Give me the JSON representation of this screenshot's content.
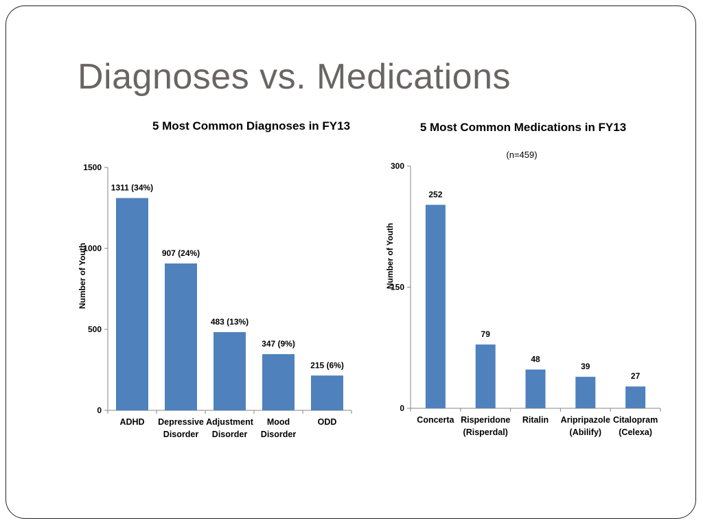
{
  "slide": {
    "title": "Diagnoses vs. Medications"
  },
  "chart_data": [
    {
      "type": "bar",
      "title": "5 Most Common Diagnoses in FY13",
      "subtitle": "",
      "ylabel": "Number of Youth",
      "xlabel": "",
      "ylim": [
        0,
        1500
      ],
      "yticks": [
        "0",
        "500",
        "1000",
        "1500"
      ],
      "categories": [
        [
          "ADHD"
        ],
        [
          "Depressive",
          "Disorder"
        ],
        [
          "Adjustment",
          "Disorder"
        ],
        [
          "Mood",
          "Disorder"
        ],
        [
          "ODD"
        ]
      ],
      "values": [
        1311,
        907,
        483,
        347,
        215
      ],
      "data_labels": [
        "1311 (34%)",
        "907 (24%)",
        "483 (13%)",
        "347 (9%)",
        "215 (6%)"
      ],
      "bar_color": "#4f81bd",
      "grid": false,
      "legend": "none"
    },
    {
      "type": "bar",
      "title": "5 Most Common Medications in FY13",
      "subtitle": "(n=459)",
      "ylabel": "Number of Youth",
      "xlabel": "",
      "ylim": [
        0,
        300
      ],
      "yticks": [
        "0",
        "150",
        "300"
      ],
      "categories": [
        [
          "Concerta"
        ],
        [
          "Risperidone",
          "(Risperdal)"
        ],
        [
          "Ritalin"
        ],
        [
          "Aripripazole",
          "(Abilify)"
        ],
        [
          "Citalopram",
          "(Celexa)"
        ]
      ],
      "values": [
        252,
        79,
        48,
        39,
        27
      ],
      "data_labels": [
        "252",
        "79",
        "48",
        "39",
        "27"
      ],
      "bar_color": "#4f81bd",
      "grid": false,
      "legend": "none"
    }
  ]
}
